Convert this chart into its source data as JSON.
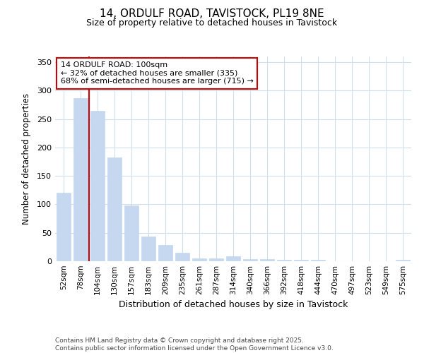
{
  "title": "14, ORDULF ROAD, TAVISTOCK, PL19 8NE",
  "subtitle": "Size of property relative to detached houses in Tavistock",
  "xlabel": "Distribution of detached houses by size in Tavistock",
  "ylabel": "Number of detached properties",
  "categories": [
    "52sqm",
    "78sqm",
    "104sqm",
    "130sqm",
    "157sqm",
    "183sqm",
    "209sqm",
    "235sqm",
    "261sqm",
    "287sqm",
    "314sqm",
    "340sqm",
    "366sqm",
    "392sqm",
    "418sqm",
    "444sqm",
    "470sqm",
    "497sqm",
    "523sqm",
    "549sqm",
    "575sqm"
  ],
  "values": [
    120,
    287,
    265,
    182,
    98,
    44,
    28,
    15,
    5,
    5,
    9,
    4,
    4,
    3,
    3,
    3,
    0,
    0,
    0,
    0,
    2
  ],
  "bar_color": "#c5d8f0",
  "bar_edge_color": "#c5d8f0",
  "vline_x": 1.5,
  "vline_color": "#cc0000",
  "annotation_text": "14 ORDULF ROAD: 100sqm\n← 32% of detached houses are smaller (335)\n68% of semi-detached houses are larger (715) →",
  "annotation_box_color": "#ffffff",
  "annotation_box_edge": "#cc0000",
  "ylim": [
    0,
    360
  ],
  "yticks": [
    0,
    50,
    100,
    150,
    200,
    250,
    300,
    350
  ],
  "footer": "Contains HM Land Registry data © Crown copyright and database right 2025.\nContains public sector information licensed under the Open Government Licence v3.0.",
  "background_color": "#ffffff",
  "plot_bg_color": "#ffffff",
  "grid_color": "#d0dff0"
}
